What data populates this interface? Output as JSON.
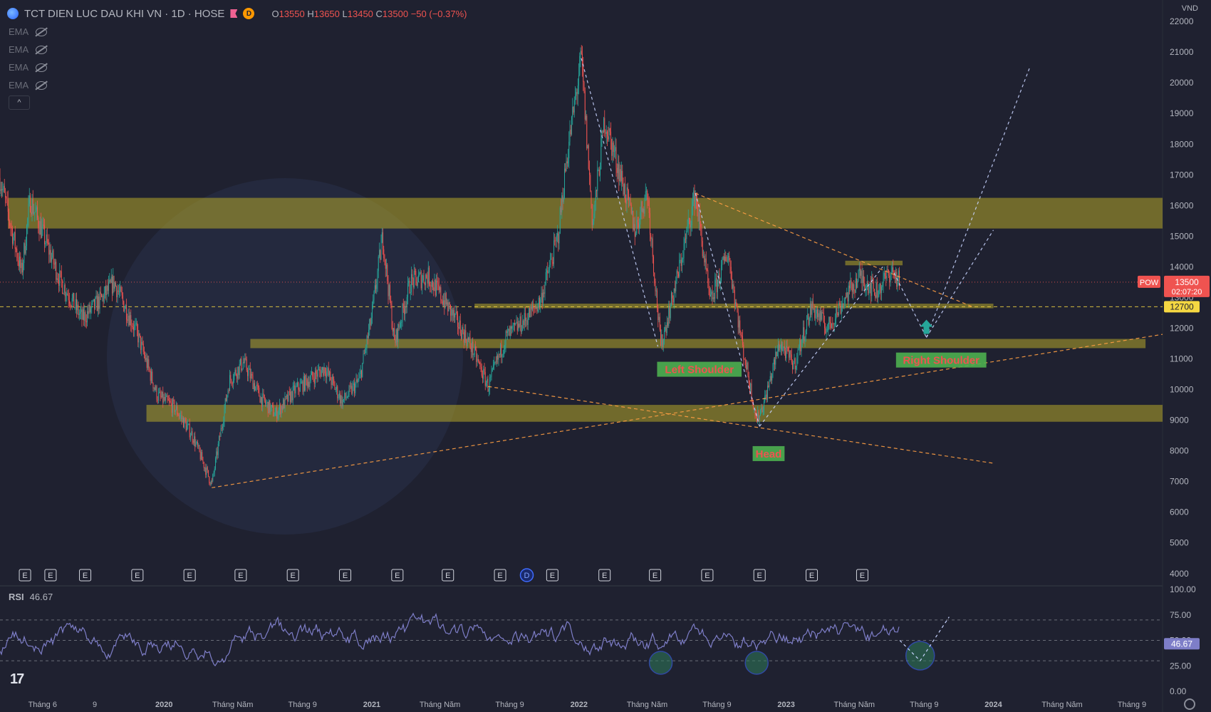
{
  "header": {
    "title": "TCT DIEN LUC DAU KHI VN · 1D · HOSE",
    "badge": "D",
    "o_key": "O",
    "o_val": "13550",
    "h_key": "H",
    "h_val": "13650",
    "l_key": "L",
    "l_val": "13450",
    "c_key": "C",
    "c_val": "13500",
    "change": "−50 (−0.37%)"
  },
  "currency": "VND",
  "indicators": [
    {
      "label": "EMA",
      "icon": "eye-off-icon"
    },
    {
      "label": "EMA",
      "icon": "eye-off-icon"
    },
    {
      "label": "EMA",
      "icon": "eye-off-icon"
    },
    {
      "label": "EMA",
      "icon": "eye-off-icon"
    }
  ],
  "collapse_label": "^",
  "rsi": {
    "label": "RSI",
    "value": "46.67",
    "ticks": [
      "100.00",
      "75.00",
      "50.00",
      "25.00",
      "0.00"
    ]
  },
  "price_tag": {
    "symbol": "POW",
    "price": "13500",
    "countdown": "02:07:20",
    "level": "12700"
  },
  "colors": {
    "background": "#1f2130",
    "up": "#26a69a",
    "down": "#ef5350",
    "zone": "#b5a72a",
    "label_bg": "#4caf50",
    "label_text": "#ef5350",
    "rsi_line": "#7e7ec8"
  },
  "event_markers": [
    {
      "label": "E",
      "x": "2019-05-01"
    },
    {
      "label": "E",
      "x": "2019-06-15"
    },
    {
      "label": "E",
      "x": "2019-08-15"
    },
    {
      "label": "E",
      "x": "2019-11-15"
    },
    {
      "label": "E",
      "x": "2020-02-15"
    },
    {
      "label": "E",
      "x": "2020-05-15"
    },
    {
      "label": "E",
      "x": "2020-08-15"
    },
    {
      "label": "E",
      "x": "2020-11-15"
    },
    {
      "label": "E",
      "x": "2021-02-15"
    },
    {
      "label": "E",
      "x": "2021-05-15"
    },
    {
      "label": "E",
      "x": "2021-08-15"
    },
    {
      "label": "D",
      "x": "2021-10-01"
    },
    {
      "label": "E",
      "x": "2021-11-15"
    },
    {
      "label": "E",
      "x": "2022-02-15"
    },
    {
      "label": "E",
      "x": "2022-05-15"
    },
    {
      "label": "E",
      "x": "2022-08-15"
    },
    {
      "label": "E",
      "x": "2022-11-15"
    },
    {
      "label": "E",
      "x": "2023-02-15"
    },
    {
      "label": "E",
      "x": "2023-05-15"
    }
  ],
  "chart_data": {
    "type": "candlestick",
    "symbol": "POW",
    "timeframe": "1D",
    "exchange": "HOSE",
    "title": "TCT DIEN LUC DAU KHI VN",
    "x_ticks": [
      "Tháng 6",
      "9",
      "2020",
      "Tháng Năm",
      "Tháng 9",
      "2021",
      "Tháng Năm",
      "Tháng 9",
      "2022",
      "Tháng Năm",
      "Tháng 9",
      "2023",
      "Tháng Năm",
      "Tháng 9",
      "2024",
      "Tháng Năm",
      "Tháng 9"
    ],
    "x_tick_dates": [
      "2019-06-01",
      "2019-09-01",
      "2020-01-01",
      "2020-05-01",
      "2020-09-01",
      "2021-01-01",
      "2021-05-01",
      "2021-09-01",
      "2022-01-01",
      "2022-05-01",
      "2022-09-01",
      "2023-01-01",
      "2023-05-01",
      "2023-09-01",
      "2024-01-01",
      "2024-05-01",
      "2024-09-01"
    ],
    "y_ticks": [
      4000,
      5000,
      6000,
      7000,
      8000,
      9000,
      10000,
      11000,
      12000,
      13000,
      14000,
      15000,
      16000,
      17000,
      18000,
      19000,
      20000,
      21000,
      22000
    ],
    "ylim": [
      3600,
      22700
    ],
    "xlim": [
      "2019-03-18",
      "2024-10-25"
    ],
    "price_path": [
      {
        "x": "2019-03-18",
        "y": 16900
      },
      {
        "x": "2019-04-10",
        "y": 15000
      },
      {
        "x": "2019-04-25",
        "y": 13800
      },
      {
        "x": "2019-05-10",
        "y": 16200
      },
      {
        "x": "2019-06-01",
        "y": 15100
      },
      {
        "x": "2019-07-01",
        "y": 13600
      },
      {
        "x": "2019-08-10",
        "y": 12300
      },
      {
        "x": "2019-09-15",
        "y": 13000
      },
      {
        "x": "2019-10-05",
        "y": 13500
      },
      {
        "x": "2019-11-15",
        "y": 11800
      },
      {
        "x": "2019-12-20",
        "y": 9800
      },
      {
        "x": "2020-01-20",
        "y": 9400
      },
      {
        "x": "2020-02-20",
        "y": 8500
      },
      {
        "x": "2020-03-25",
        "y": 6900
      },
      {
        "x": "2020-04-25",
        "y": 10300
      },
      {
        "x": "2020-05-20",
        "y": 10900
      },
      {
        "x": "2020-06-20",
        "y": 9700
      },
      {
        "x": "2020-07-15",
        "y": 9200
      },
      {
        "x": "2020-08-20",
        "y": 10000
      },
      {
        "x": "2020-10-10",
        "y": 10700
      },
      {
        "x": "2020-11-10",
        "y": 9600
      },
      {
        "x": "2020-12-10",
        "y": 10300
      },
      {
        "x": "2020-12-31",
        "y": 12300
      },
      {
        "x": "2021-01-20",
        "y": 15000
      },
      {
        "x": "2021-02-10",
        "y": 11500
      },
      {
        "x": "2021-03-10",
        "y": 13500
      },
      {
        "x": "2021-04-10",
        "y": 13700
      },
      {
        "x": "2021-05-15",
        "y": 12700
      },
      {
        "x": "2021-06-25",
        "y": 11400
      },
      {
        "x": "2021-07-25",
        "y": 10100
      },
      {
        "x": "2021-08-25",
        "y": 11700
      },
      {
        "x": "2021-09-25",
        "y": 12200
      },
      {
        "x": "2021-10-25",
        "y": 12900
      },
      {
        "x": "2021-11-25",
        "y": 15000
      },
      {
        "x": "2021-12-10",
        "y": 17500
      },
      {
        "x": "2022-01-05",
        "y": 20800
      },
      {
        "x": "2022-01-25",
        "y": 15400
      },
      {
        "x": "2022-02-15",
        "y": 18800
      },
      {
        "x": "2022-03-15",
        "y": 17000
      },
      {
        "x": "2022-04-10",
        "y": 15200
      },
      {
        "x": "2022-05-01",
        "y": 16500
      },
      {
        "x": "2022-05-25",
        "y": 11400
      },
      {
        "x": "2022-06-25",
        "y": 13800
      },
      {
        "x": "2022-07-25",
        "y": 16400
      },
      {
        "x": "2022-08-20",
        "y": 12800
      },
      {
        "x": "2022-09-20",
        "y": 14500
      },
      {
        "x": "2022-10-15",
        "y": 11500
      },
      {
        "x": "2022-11-10",
        "y": 9000
      },
      {
        "x": "2022-11-25",
        "y": 9700
      },
      {
        "x": "2022-12-20",
        "y": 11500
      },
      {
        "x": "2023-01-15",
        "y": 10800
      },
      {
        "x": "2023-02-15",
        "y": 12700
      },
      {
        "x": "2023-03-15",
        "y": 12000
      },
      {
        "x": "2023-04-15",
        "y": 13000
      },
      {
        "x": "2023-05-10",
        "y": 13700
      },
      {
        "x": "2023-06-10",
        "y": 13200
      },
      {
        "x": "2023-07-05",
        "y": 13900
      },
      {
        "x": "2023-07-20",
        "y": 13500
      }
    ],
    "zones": [
      {
        "x1": "2019-04-01",
        "x2": "2024-10-25",
        "y_low": 15250,
        "y_high": 16250
      },
      {
        "x1": "2021-07-01",
        "x2": "2024-01-01",
        "y_low": 12650,
        "y_high": 12800
      },
      {
        "x1": "2020-06-01",
        "x2": "2024-09-25",
        "y_low": 11350,
        "y_high": 11650
      },
      {
        "x1": "2019-12-01",
        "x2": "2024-10-25",
        "y_low": 8950,
        "y_high": 9500
      },
      {
        "x1": "2023-04-15",
        "x2": "2023-07-25",
        "y_low": 14050,
        "y_high": 14200
      }
    ],
    "trendlines": [
      {
        "style": "orange-dashed",
        "from": {
          "x": "2020-03-25",
          "y": 6800
        },
        "to": {
          "x": "2024-10-25",
          "y": 11800
        }
      },
      {
        "style": "orange-dashed",
        "from": {
          "x": "2021-07-25",
          "y": 10100
        },
        "to": {
          "x": "2023-12-31",
          "y": 7600
        }
      },
      {
        "style": "orange-dashed",
        "from": {
          "x": "2022-07-25",
          "y": 16400
        },
        "to": {
          "x": "2023-11-25",
          "y": 12700
        }
      },
      {
        "style": "white-dashed",
        "from": {
          "x": "2022-01-05",
          "y": 20800
        },
        "to": {
          "x": "2022-05-20",
          "y": 11400
        }
      },
      {
        "style": "white-dashed",
        "from": {
          "x": "2022-07-25",
          "y": 16400
        },
        "to": {
          "x": "2022-11-15",
          "y": 8800
        }
      },
      {
        "style": "white-dashed",
        "from": {
          "x": "2022-11-15",
          "y": 8800
        },
        "to": {
          "x": "2023-06-20",
          "y": 14000
        }
      },
      {
        "style": "white-dashed",
        "from": {
          "x": "2023-07-10",
          "y": 13800
        },
        "to": {
          "x": "2023-09-05",
          "y": 11700
        }
      },
      {
        "style": "white-dashed",
        "from": {
          "x": "2023-09-05",
          "y": 11700
        },
        "to": {
          "x": "2024-01-01",
          "y": 15200
        }
      },
      {
        "style": "white-dashed",
        "from": {
          "x": "2023-09-05",
          "y": 11700
        },
        "to": {
          "x": "2024-03-05",
          "y": 20500
        }
      }
    ],
    "price_lines": [
      {
        "y": 13500,
        "style": "red-dotted"
      },
      {
        "y": 12700,
        "style": "yellow-dashed"
      }
    ],
    "annotations": [
      {
        "text": "Left Shoulder",
        "x": "2022-08-01",
        "y": 10650
      },
      {
        "text": "Head",
        "x": "2022-12-01",
        "y": 7900
      },
      {
        "text": "Right Shoulder",
        "x": "2023-10-01",
        "y": 10950
      }
    ],
    "arrow": {
      "x": "2023-09-05",
      "y": 12000,
      "direction": "up"
    },
    "rsi": {
      "value": 46.67,
      "ylim": [
        0,
        100
      ],
      "levels": [
        70,
        50,
        30
      ],
      "circles": [
        {
          "x": "2022-05-25",
          "y": 28
        },
        {
          "x": "2022-11-10",
          "y": 28
        },
        {
          "x": "2023-08-25",
          "y": 35
        }
      ],
      "projection": [
        {
          "x": "2023-07-20",
          "y": 50
        },
        {
          "x": "2023-08-25",
          "y": 30
        },
        {
          "x": "2023-10-15",
          "y": 73
        }
      ]
    }
  }
}
